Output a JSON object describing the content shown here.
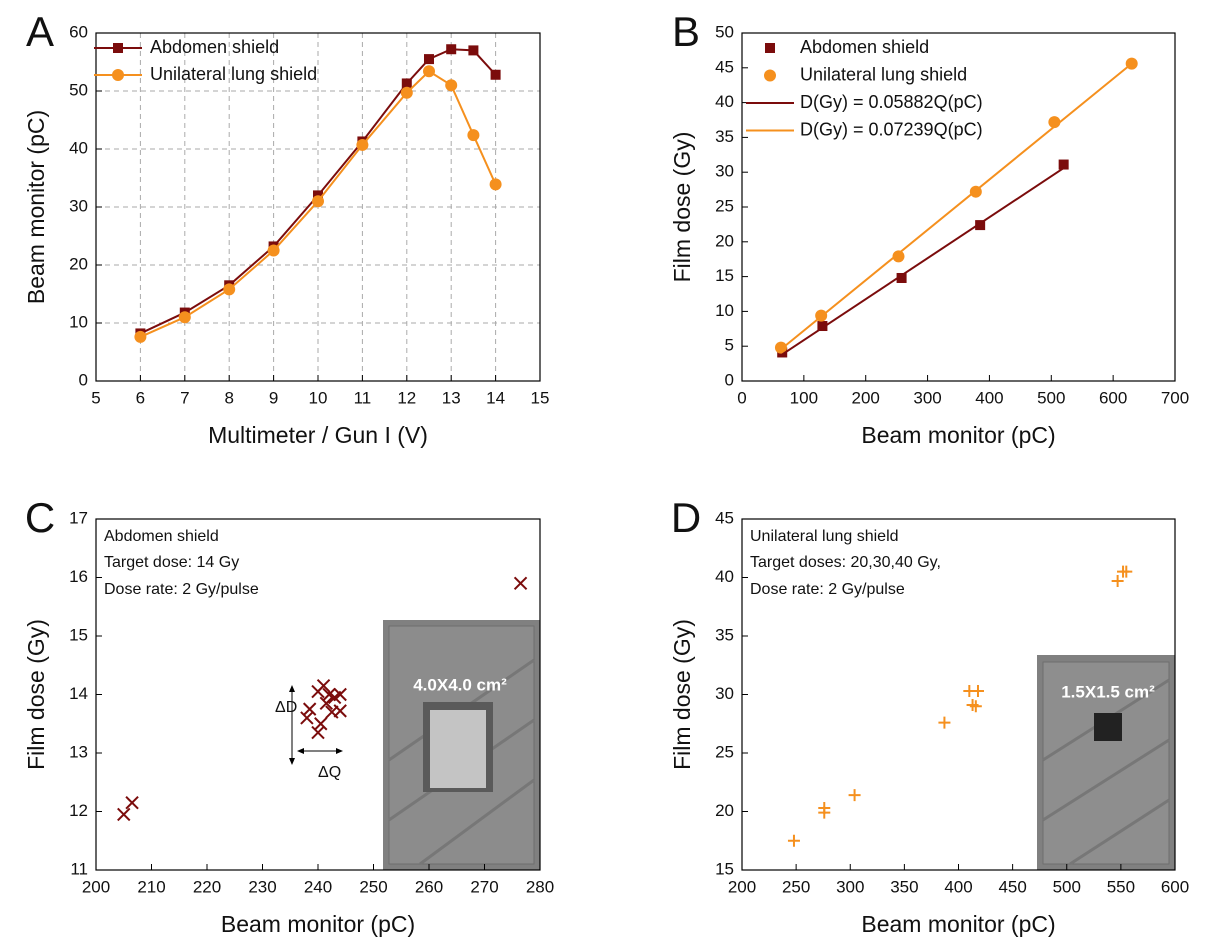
{
  "chart_data": [
    {
      "type": "line",
      "panel": "A",
      "xlabel": "Multimeter / Gun I (V)",
      "ylabel": "Beam monitor (pC)",
      "xlim": [
        5,
        15
      ],
      "ylim": [
        0,
        60
      ],
      "xticks": [
        5,
        6,
        7,
        8,
        9,
        10,
        11,
        12,
        13,
        14,
        15
      ],
      "yticks": [
        0,
        10,
        20,
        30,
        40,
        50,
        60
      ],
      "grid": true,
      "legend": "upper left",
      "series": [
        {
          "name": "Abdomen shield",
          "color": "#7b0c0c",
          "marker": "square",
          "line": true,
          "x": [
            6,
            7,
            8,
            9,
            10,
            11,
            12,
            12.5,
            13,
            13.5,
            14
          ],
          "values": [
            8.2,
            11.8,
            16.5,
            23.2,
            32,
            41.3,
            51.3,
            55.5,
            57.2,
            57,
            52.8
          ]
        },
        {
          "name": "Unilateral lung shield",
          "color": "#f5901e",
          "marker": "circle",
          "line": true,
          "x": [
            6,
            7,
            8,
            9,
            10,
            11,
            12,
            12.5,
            13,
            13.5,
            14
          ],
          "values": [
            7.6,
            11,
            15.8,
            22.5,
            31,
            40.7,
            49.7,
            53.4,
            51,
            42.4,
            33.9
          ]
        }
      ]
    },
    {
      "type": "scatter",
      "panel": "B",
      "xlabel": "Beam monitor (pC)",
      "ylabel": "Film dose (Gy)",
      "xlim": [
        0,
        700
      ],
      "ylim": [
        0,
        50
      ],
      "xticks": [
        0,
        100,
        200,
        300,
        400,
        500,
        600,
        700
      ],
      "yticks": [
        0,
        5,
        10,
        15,
        20,
        25,
        30,
        35,
        40,
        45,
        50
      ],
      "grid": false,
      "legend": "upper left",
      "series": [
        {
          "name": "Abdomen shield",
          "color": "#7b0c0c",
          "marker": "square",
          "line": false,
          "x": [
            65,
            130,
            258,
            385,
            520
          ],
          "values": [
            4.1,
            7.9,
            14.8,
            22.4,
            31.1
          ]
        },
        {
          "name": "Unilateral lung shield",
          "color": "#f5901e",
          "marker": "circle",
          "line": false,
          "x": [
            63,
            128,
            253,
            378,
            505,
            630
          ],
          "values": [
            4.8,
            9.4,
            17.9,
            27.2,
            37.2,
            45.6
          ]
        },
        {
          "name": "D(Gy) = 0.05882Q(pC)",
          "color": "#7b0c0c",
          "marker": "none",
          "line": true,
          "x": [
            65,
            520
          ],
          "values": [
            3.82,
            30.59
          ]
        },
        {
          "name": "D(Gy) = 0.07239Q(pC)",
          "color": "#f5901e",
          "marker": "none",
          "line": true,
          "x": [
            63,
            630
          ],
          "values": [
            4.56,
            45.6
          ]
        }
      ]
    },
    {
      "type": "scatter",
      "panel": "C",
      "xlabel": "Beam monitor (pC)",
      "ylabel": "Film dose (Gy)",
      "xlim": [
        200,
        280
      ],
      "ylim": [
        11,
        17
      ],
      "xticks": [
        200,
        210,
        220,
        230,
        240,
        250,
        260,
        270,
        280
      ],
      "yticks": [
        11,
        12,
        13,
        14,
        15,
        16,
        17
      ],
      "grid": false,
      "annotations": [
        "Abdomen shield",
        "Target dose: 14 Gy",
        "Dose rate: 2 Gy/pulse",
        "ΔD",
        "ΔQ"
      ],
      "inset_label": "4.0X4.0 cm²",
      "series": [
        {
          "color": "#7b0c0c",
          "marker": "x",
          "line": false,
          "x": [
            205,
            206.5,
            276.5,
            240,
            241,
            242,
            243,
            244,
            241.5,
            238.5,
            238,
            242.5,
            244,
            240.5,
            240
          ],
          "values": [
            11.95,
            12.15,
            15.9,
            14.05,
            14.15,
            14.0,
            13.95,
            14.0,
            13.85,
            13.75,
            13.6,
            13.7,
            13.72,
            13.5,
            13.35
          ]
        }
      ]
    },
    {
      "type": "scatter",
      "panel": "D",
      "xlabel": "Beam monitor (pC)",
      "ylabel": "Film dose (Gy)",
      "xlim": [
        200,
        600
      ],
      "ylim": [
        15,
        45
      ],
      "xticks": [
        200,
        250,
        300,
        350,
        400,
        450,
        500,
        550,
        600
      ],
      "yticks": [
        15,
        20,
        25,
        30,
        35,
        40,
        45
      ],
      "grid": false,
      "annotations": [
        "Unilateral lung shield",
        "Target doses: 20,30,40 Gy,",
        "Dose rate: 2 Gy/pulse"
      ],
      "inset_label": "1.5X1.5 cm²",
      "series": [
        {
          "color": "#f5901e",
          "marker": "plus",
          "line": false,
          "x": [
            248,
            276,
            276,
            304,
            387,
            410,
            418,
            413,
            416,
            547,
            552,
            555
          ],
          "values": [
            17.5,
            20.3,
            19.9,
            21.4,
            27.6,
            30.3,
            30.3,
            29.1,
            29.0,
            39.7,
            40.5,
            40.5
          ]
        }
      ]
    }
  ]
}
